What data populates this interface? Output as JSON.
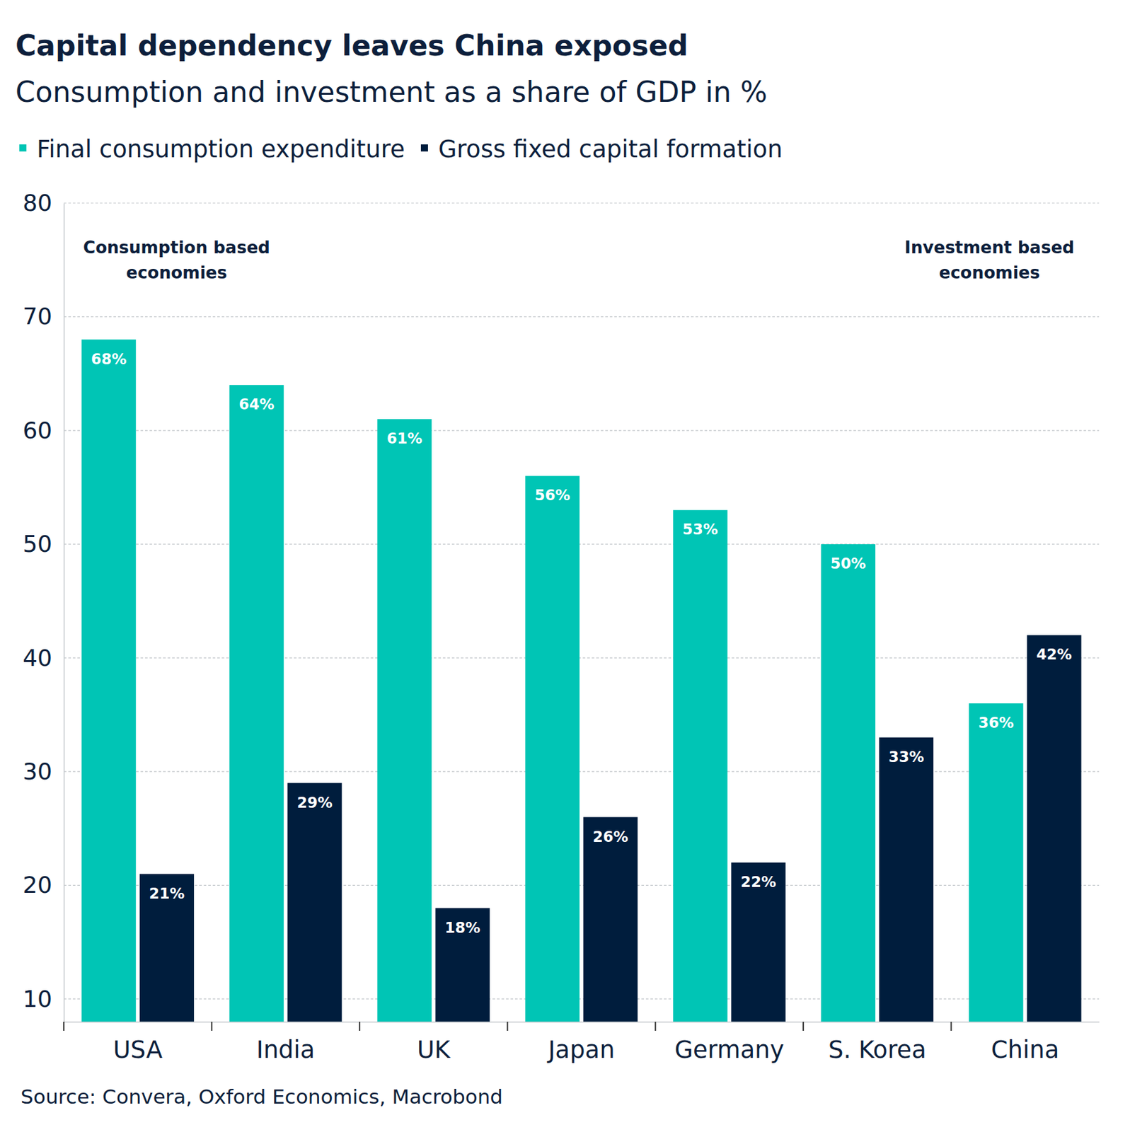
{
  "chart_data": {
    "type": "bar",
    "title": "Capital dependency leaves China exposed",
    "subtitle": "Consumption and investment as a share of GDP in %",
    "categories": [
      "USA",
      "India",
      "UK",
      "Japan",
      "Germany",
      "S. Korea",
      "China"
    ],
    "series": [
      {
        "name": "Final consumption expenditure",
        "color": "#00c5b5",
        "values": [
          68,
          64,
          61,
          56,
          53,
          50,
          36
        ],
        "value_labels": [
          "68%",
          "64%",
          "61%",
          "56%",
          "53%",
          "50%",
          "36%"
        ]
      },
      {
        "name": "Gross fixed capital formation",
        "color": "#001d3d",
        "values": [
          21,
          29,
          18,
          26,
          22,
          33,
          42
        ],
        "value_labels": [
          "21%",
          "29%",
          "18%",
          "26%",
          "22%",
          "33%",
          "42%"
        ]
      }
    ],
    "ylim": [
      8,
      80
    ],
    "yticks": [
      10,
      20,
      30,
      40,
      50,
      60,
      70,
      80
    ],
    "grid": true,
    "legend": "top-left",
    "data_labels": true,
    "annotations": [
      [
        "Consumption based",
        "economies"
      ],
      [
        "Investment based",
        "economies"
      ]
    ],
    "source": "Source: Convera, Oxford Economics, Macrobond"
  }
}
